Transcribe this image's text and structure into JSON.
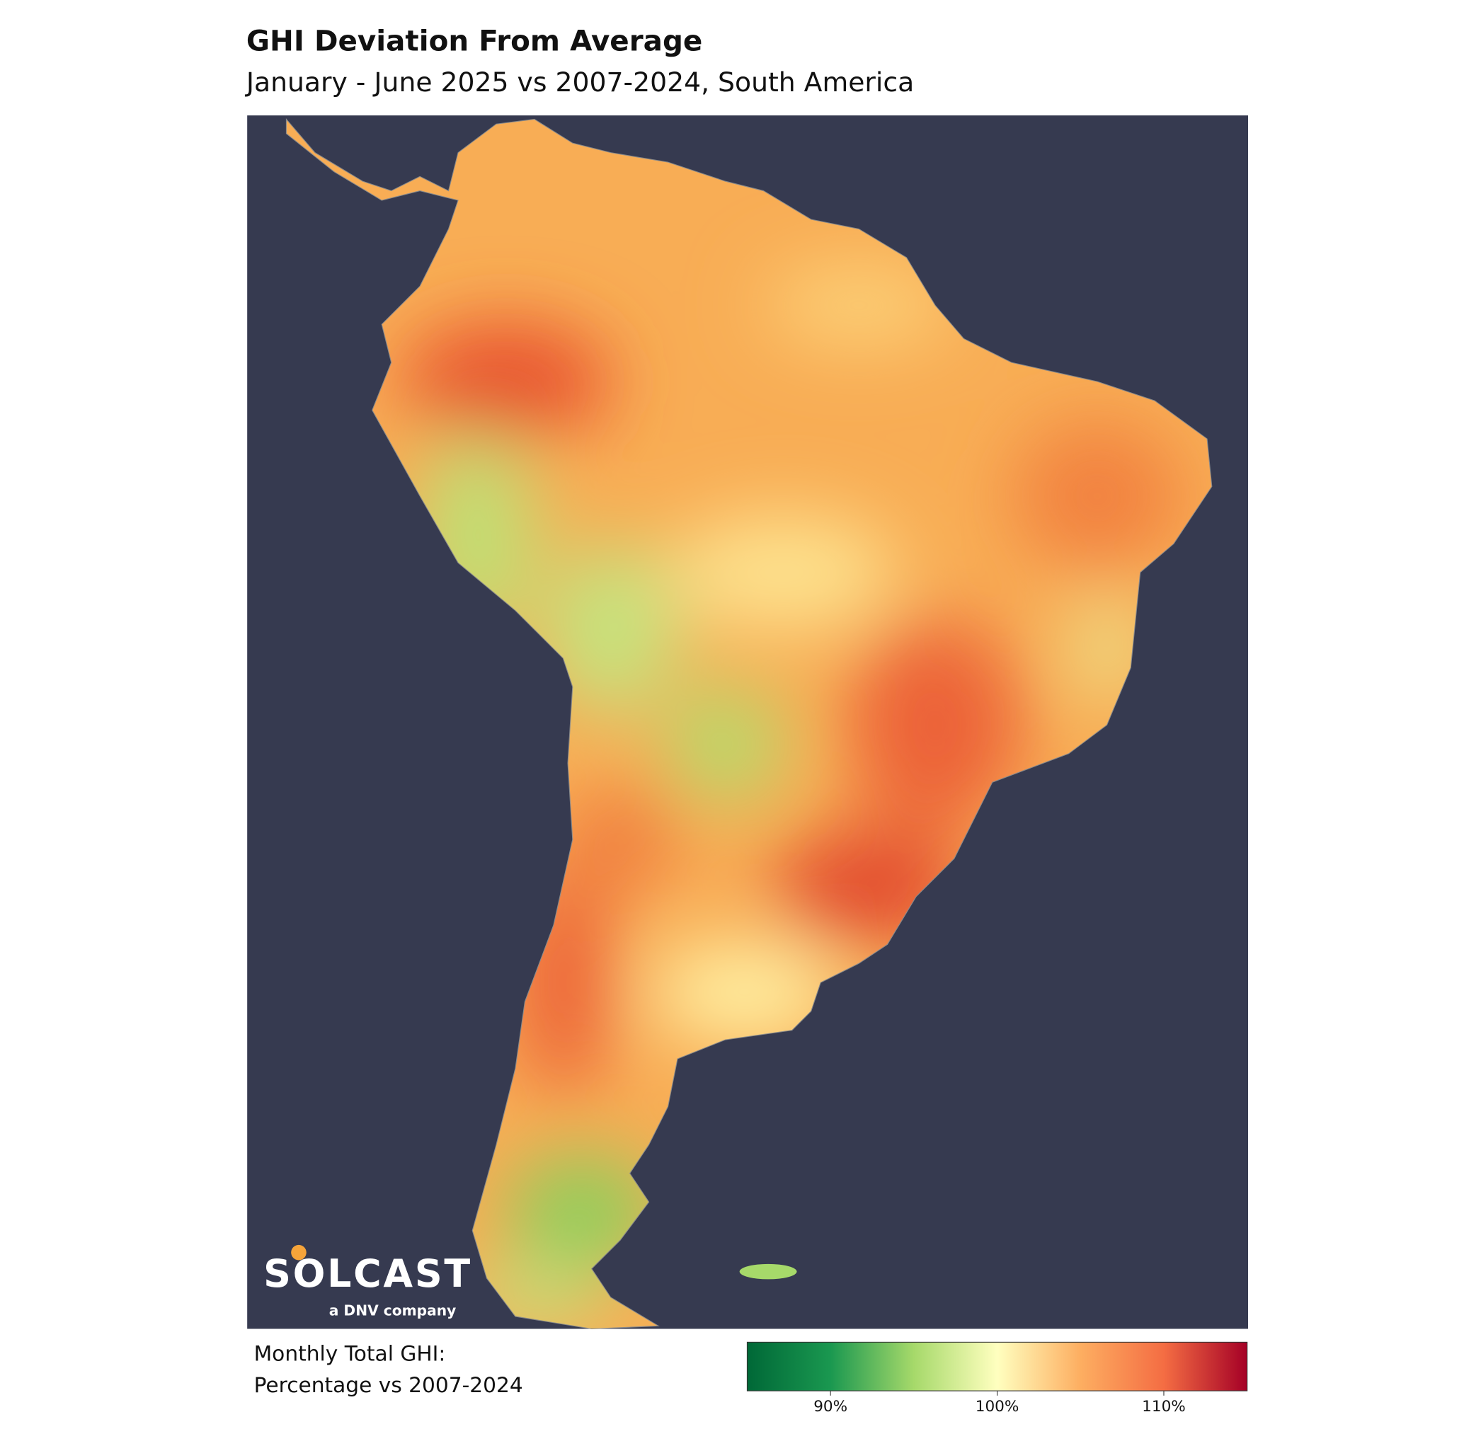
{
  "header": {
    "title": "GHI Deviation From Average",
    "subtitle": "January - June 2025 vs 2007-2024, South America"
  },
  "logo": {
    "name": "SOLCAST",
    "tagline": "a DNV company"
  },
  "legend": {
    "title_lines": [
      "Monthly Total GHI:",
      "Percentage vs 2007-2024"
    ]
  },
  "colorbar": {
    "range": [
      85,
      115
    ],
    "colormap": [
      "#006837",
      "#1a9850",
      "#a6d96a",
      "#ffffbf",
      "#fdae61",
      "#f46d43",
      "#a50026"
    ],
    "ticks": [
      {
        "value": 90,
        "label": "90%"
      },
      {
        "value": 100,
        "label": "100%"
      },
      {
        "value": 110,
        "label": "110%"
      }
    ]
  }
}
